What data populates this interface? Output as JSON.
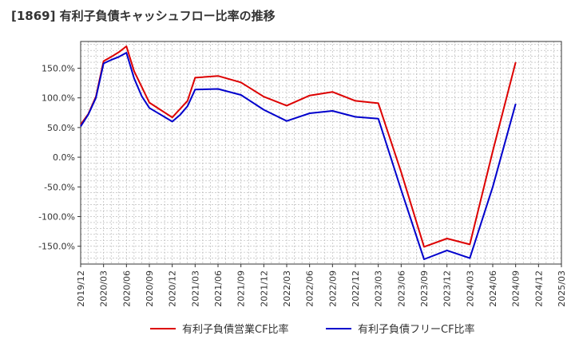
{
  "chart_data": {
    "type": "line",
    "title": "[1869]  有利子負債キャッシュフロー比率の推移",
    "xlabel": "",
    "ylabel": "",
    "x_tick_labels": [
      "2019/12",
      "2020/03",
      "2020/06",
      "2020/09",
      "2020/12",
      "2021/03",
      "2021/06",
      "2021/09",
      "2021/12",
      "2022/03",
      "2022/06",
      "2022/09",
      "2022/12",
      "2023/03",
      "2023/06",
      "2023/09",
      "2023/12",
      "2024/03",
      "2024/06",
      "2024/09",
      "2024/12",
      "2025/03"
    ],
    "y_tick_values": [
      -150,
      -100,
      -50,
      0,
      50,
      100,
      150
    ],
    "y_tick_labels": [
      "-150.0%",
      "-100.0%",
      "-50.0%",
      "0.0%",
      "50.0%",
      "100.0%",
      "150.0%"
    ],
    "ylim": [
      -180,
      195
    ],
    "grid": true,
    "legend_position": "bottom",
    "series": [
      {
        "name": "有利子負債営業CF比率",
        "color": "#dd0000",
        "points": [
          [
            "2019/12",
            55
          ],
          [
            "2020/01",
            73
          ],
          [
            "2020/02",
            102
          ],
          [
            "2020/03",
            162
          ],
          [
            "2020/04",
            169
          ],
          [
            "2020/05",
            177
          ],
          [
            "2020/06",
            187
          ],
          [
            "2020/07",
            145
          ],
          [
            "2020/09",
            92
          ],
          [
            "2020/12",
            67
          ],
          [
            "2021/02",
            95
          ],
          [
            "2021/03",
            134
          ],
          [
            "2021/06",
            137
          ],
          [
            "2021/09",
            126
          ],
          [
            "2021/12",
            102
          ],
          [
            "2022/03",
            87
          ],
          [
            "2022/06",
            104
          ],
          [
            "2022/09",
            110
          ],
          [
            "2022/12",
            95
          ],
          [
            "2023/03",
            91
          ],
          [
            "2023/06",
            -25
          ],
          [
            "2023/09",
            -151
          ],
          [
            "2023/12",
            -137
          ],
          [
            "2024/03",
            -147
          ],
          [
            "2024/06",
            10
          ],
          [
            "2024/09",
            160
          ]
        ]
      },
      {
        "name": "有利子負債フリーCF比率",
        "color": "#0000cc",
        "points": [
          [
            "2019/12",
            52
          ],
          [
            "2020/01",
            72
          ],
          [
            "2020/02",
            100
          ],
          [
            "2020/03",
            158
          ],
          [
            "2020/04",
            164
          ],
          [
            "2020/05",
            169
          ],
          [
            "2020/06",
            176
          ],
          [
            "2020/07",
            133
          ],
          [
            "2020/08",
            103
          ],
          [
            "2020/09",
            83
          ],
          [
            "2020/12",
            60
          ],
          [
            "2021/01",
            71
          ],
          [
            "2021/02",
            86
          ],
          [
            "2021/03",
            114
          ],
          [
            "2021/06",
            115
          ],
          [
            "2021/09",
            105
          ],
          [
            "2021/12",
            80
          ],
          [
            "2022/03",
            61
          ],
          [
            "2022/06",
            74
          ],
          [
            "2022/09",
            78
          ],
          [
            "2022/12",
            68
          ],
          [
            "2023/03",
            65
          ],
          [
            "2023/06",
            -55
          ],
          [
            "2023/09",
            -172
          ],
          [
            "2023/12",
            -157
          ],
          [
            "2024/03",
            -170
          ],
          [
            "2024/06",
            -50
          ],
          [
            "2024/09",
            90
          ]
        ]
      }
    ]
  }
}
